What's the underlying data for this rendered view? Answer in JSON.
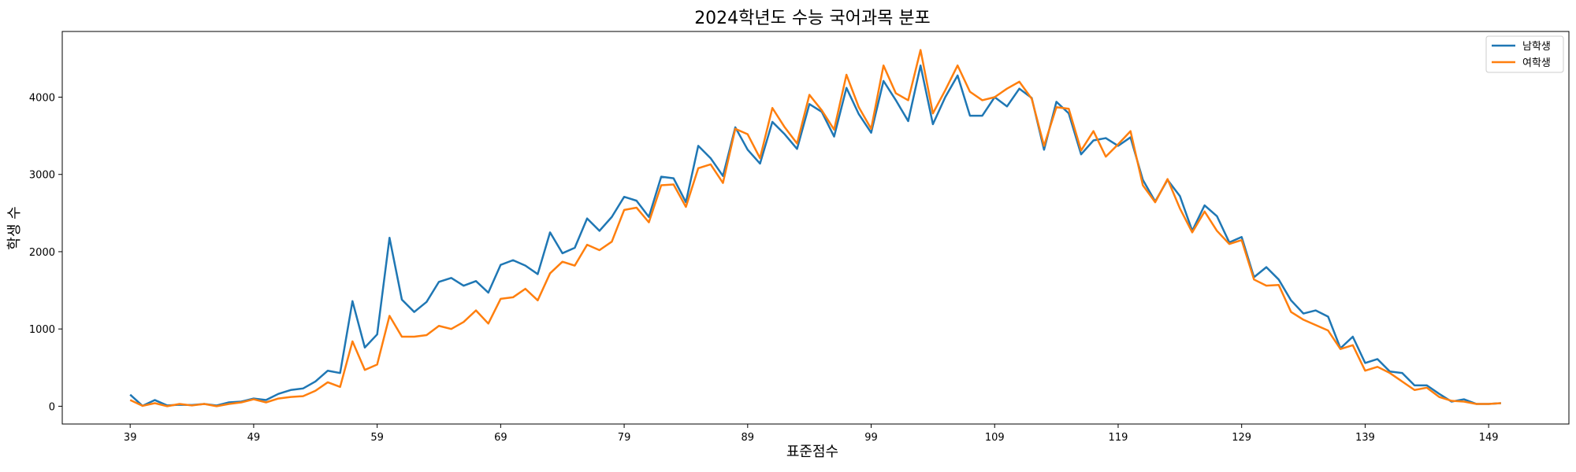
{
  "chart_data": {
    "type": "line",
    "title": "2024학년도 수능 국어과목 분포",
    "xlabel": "표준점수",
    "ylabel": "학생 수",
    "x_start": 39,
    "x_end": 150,
    "xlim": [
      33.5,
      155.5
    ],
    "ylim": [
      -230,
      4850
    ],
    "xticks": [
      39,
      49,
      59,
      69,
      79,
      89,
      99,
      109,
      119,
      129,
      139,
      149
    ],
    "yticks": [
      0,
      1000,
      2000,
      3000,
      4000
    ],
    "legend_position": "top-right",
    "grid": false,
    "series": [
      {
        "name": "남학생",
        "color": "#1f77b4",
        "values": [
          150,
          5,
          80,
          10,
          20,
          15,
          30,
          10,
          50,
          60,
          100,
          80,
          160,
          210,
          230,
          320,
          460,
          430,
          1360,
          760,
          930,
          2180,
          1380,
          1220,
          1350,
          1610,
          1660,
          1560,
          1620,
          1470,
          1830,
          1890,
          1820,
          1710,
          2250,
          1980,
          2050,
          2430,
          2270,
          2450,
          2710,
          2660,
          2450,
          2970,
          2950,
          2640,
          3370,
          3210,
          2980,
          3610,
          3320,
          3140,
          3680,
          3520,
          3330,
          3910,
          3810,
          3490,
          4120,
          3780,
          3540,
          4210,
          3960,
          3690,
          4410,
          3650,
          4000,
          4280,
          3760,
          3760,
          4000,
          3880,
          4110,
          3990,
          3320,
          3940,
          3790,
          3260,
          3440,
          3470,
          3370,
          3480,
          2930,
          2650,
          2930,
          2720,
          2270,
          2600,
          2460,
          2120,
          2190,
          1670,
          1800,
          1640,
          1370,
          1200,
          1240,
          1160,
          750,
          900,
          560,
          610,
          450,
          430,
          270,
          270,
          160,
          60,
          90,
          30,
          30,
          40
        ]
      },
      {
        "name": "여학생",
        "color": "#ff7f0e",
        "values": [
          80,
          5,
          40,
          0,
          30,
          10,
          30,
          0,
          30,
          50,
          90,
          50,
          100,
          120,
          130,
          200,
          310,
          250,
          840,
          470,
          540,
          1170,
          900,
          900,
          920,
          1040,
          1000,
          1090,
          1240,
          1070,
          1390,
          1410,
          1520,
          1370,
          1720,
          1870,
          1820,
          2090,
          2020,
          2130,
          2540,
          2570,
          2380,
          2860,
          2870,
          2580,
          3080,
          3130,
          2890,
          3590,
          3520,
          3210,
          3860,
          3610,
          3400,
          4030,
          3830,
          3580,
          4290,
          3870,
          3590,
          4410,
          4050,
          3960,
          4610,
          3790,
          4090,
          4410,
          4070,
          3960,
          4000,
          4110,
          4200,
          3980,
          3370,
          3870,
          3850,
          3310,
          3560,
          3230,
          3390,
          3560,
          2860,
          2640,
          2940,
          2560,
          2250,
          2520,
          2270,
          2100,
          2150,
          1640,
          1560,
          1570,
          1220,
          1120,
          1050,
          980,
          740,
          790,
          460,
          510,
          430,
          320,
          210,
          240,
          120,
          70,
          60,
          30,
          30,
          40
        ]
      }
    ]
  }
}
